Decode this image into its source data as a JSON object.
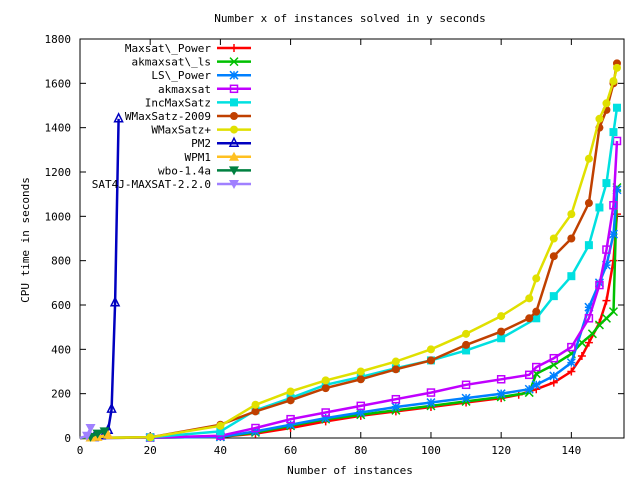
{
  "chart_data": {
    "type": "line",
    "title": "Number x of instances solved in y seconds",
    "xlabel": "Number of instances",
    "ylabel": "CPU time in seconds",
    "xlim": [
      0,
      155
    ],
    "ylim": [
      0,
      1800
    ],
    "xticks": [
      0,
      20,
      40,
      60,
      80,
      100,
      120,
      140
    ],
    "yticks": [
      0,
      200,
      400,
      600,
      800,
      1000,
      1200,
      1400,
      1600,
      1800
    ],
    "legend_position": "top-left",
    "grid": false,
    "series": [
      {
        "name": "Maxsat\\_Power",
        "color": "#ff0000",
        "marker": "plus",
        "x": [
          0,
          20,
          40,
          50,
          60,
          70,
          80,
          90,
          100,
          110,
          120,
          125,
          130,
          135,
          140,
          143,
          145,
          148,
          150,
          152,
          153
        ],
        "y": [
          0,
          2,
          5,
          20,
          45,
          75,
          100,
          120,
          140,
          160,
          180,
          195,
          220,
          250,
          300,
          370,
          430,
          520,
          620,
          800,
          1010
        ]
      },
      {
        "name": "akmaxsat\\_ls",
        "color": "#00c000",
        "marker": "cross",
        "x": [
          0,
          20,
          40,
          50,
          60,
          70,
          80,
          90,
          100,
          110,
          120,
          128,
          130,
          135,
          140,
          143,
          146,
          148,
          150,
          152,
          153
        ],
        "y": [
          0,
          2,
          5,
          25,
          55,
          85,
          105,
          125,
          145,
          165,
          185,
          205,
          290,
          330,
          380,
          430,
          470,
          510,
          540,
          570,
          1130
        ]
      },
      {
        "name": "LS\\_Power",
        "color": "#0080ff",
        "marker": "star",
        "x": [
          0,
          20,
          40,
          50,
          60,
          70,
          80,
          90,
          100,
          110,
          120,
          128,
          130,
          135,
          140,
          145,
          148,
          150,
          152,
          153
        ],
        "y": [
          0,
          2,
          5,
          30,
          60,
          90,
          115,
          140,
          160,
          180,
          200,
          220,
          240,
          280,
          340,
          590,
          700,
          780,
          920,
          1120
        ]
      },
      {
        "name": "akmaxsat",
        "color": "#c000ff",
        "marker": "square",
        "x": [
          0,
          20,
          40,
          50,
          60,
          70,
          80,
          90,
          100,
          110,
          120,
          128,
          130,
          135,
          140,
          145,
          148,
          150,
          152,
          153
        ],
        "y": [
          0,
          2,
          10,
          45,
          85,
          115,
          145,
          175,
          205,
          240,
          265,
          285,
          320,
          360,
          410,
          540,
          690,
          850,
          1050,
          1340
        ]
      },
      {
        "name": "IncMaxSatz",
        "color": "#00e0e0",
        "marker": "square-filled",
        "x": [
          0,
          20,
          40,
          50,
          60,
          70,
          80,
          90,
          100,
          110,
          120,
          130,
          135,
          140,
          145,
          148,
          150,
          152,
          153
        ],
        "y": [
          0,
          3,
          30,
          125,
          180,
          240,
          275,
          315,
          350,
          395,
          450,
          540,
          640,
          730,
          870,
          1040,
          1150,
          1380,
          1490
        ]
      },
      {
        "name": "WMaxSatz-2009",
        "color": "#c04000",
        "marker": "circle-filled",
        "x": [
          0,
          20,
          40,
          50,
          60,
          70,
          80,
          90,
          100,
          110,
          120,
          128,
          130,
          135,
          140,
          145,
          148,
          150,
          152,
          153
        ],
        "y": [
          0,
          3,
          60,
          120,
          170,
          225,
          265,
          310,
          350,
          420,
          480,
          540,
          570,
          820,
          900,
          1060,
          1400,
          1480,
          1600,
          1690
        ]
      },
      {
        "name": "WMaxSatz+",
        "color": "#e0e000",
        "marker": "circle-filled",
        "x": [
          0,
          20,
          40,
          50,
          60,
          70,
          80,
          90,
          100,
          110,
          120,
          128,
          130,
          135,
          140,
          145,
          148,
          150,
          152,
          153
        ],
        "y": [
          0,
          3,
          55,
          150,
          210,
          260,
          300,
          345,
          400,
          470,
          550,
          630,
          720,
          900,
          1010,
          1260,
          1440,
          1510,
          1610,
          1670
        ]
      },
      {
        "name": "PM2",
        "color": "#0000c0",
        "marker": "triangle-up",
        "x": [
          0,
          4,
          6,
          8,
          9,
          10,
          11
        ],
        "y": [
          0,
          2,
          10,
          35,
          130,
          610,
          1440
        ]
      },
      {
        "name": "WPM1",
        "color": "#ffc020",
        "marker": "triangle-up-filled",
        "x": [
          0,
          3,
          5,
          8
        ],
        "y": [
          0,
          2,
          5,
          15
        ]
      },
      {
        "name": "wbo-1.4a",
        "color": "#008040",
        "marker": "triangle-down-filled",
        "x": [
          0,
          3,
          5,
          7
        ],
        "y": [
          0,
          5,
          20,
          30
        ]
      },
      {
        "name": "SAT4J-MAXSAT-2.2.0",
        "color": "#a080ff",
        "marker": "triangle-down-filled",
        "x": [
          0,
          2,
          3
        ],
        "y": [
          0,
          10,
          45
        ]
      }
    ]
  }
}
